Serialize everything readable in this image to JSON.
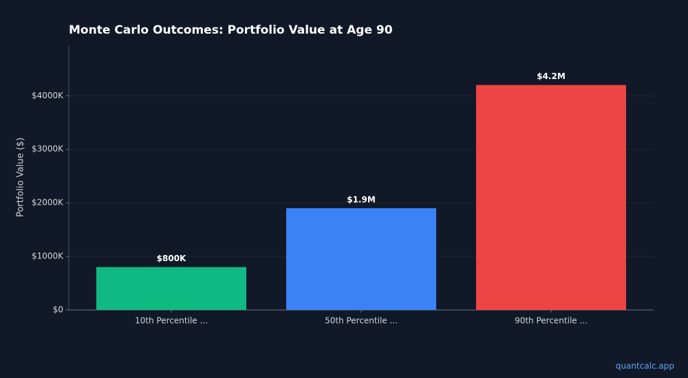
{
  "chart_data": {
    "type": "bar",
    "title": "Monte Carlo Outcomes: Portfolio Value at Age 90",
    "y_label": "Portfolio Value ($)",
    "categories": [
      "10th Percentile ...",
      "50th Percentile ...",
      "90th Percentile ..."
    ],
    "values": [
      800000,
      1900000,
      4200000
    ],
    "value_labels": [
      "$800K",
      "$1.9M",
      "$4.2M"
    ],
    "colors": [
      "#10b981",
      "#3b82f6",
      "#ef4444"
    ],
    "ylim": [
      0,
      4940000
    ],
    "yticks": [
      {
        "value": 0,
        "label": "$0"
      },
      {
        "value": 1000000,
        "label": "$1000K"
      },
      {
        "value": 2000000,
        "label": "$2000K"
      },
      {
        "value": 3000000,
        "label": "$3000K"
      },
      {
        "value": 4000000,
        "label": "$4000K"
      }
    ],
    "grid": true
  },
  "footer": {
    "watermark": "quantcalc.app"
  }
}
